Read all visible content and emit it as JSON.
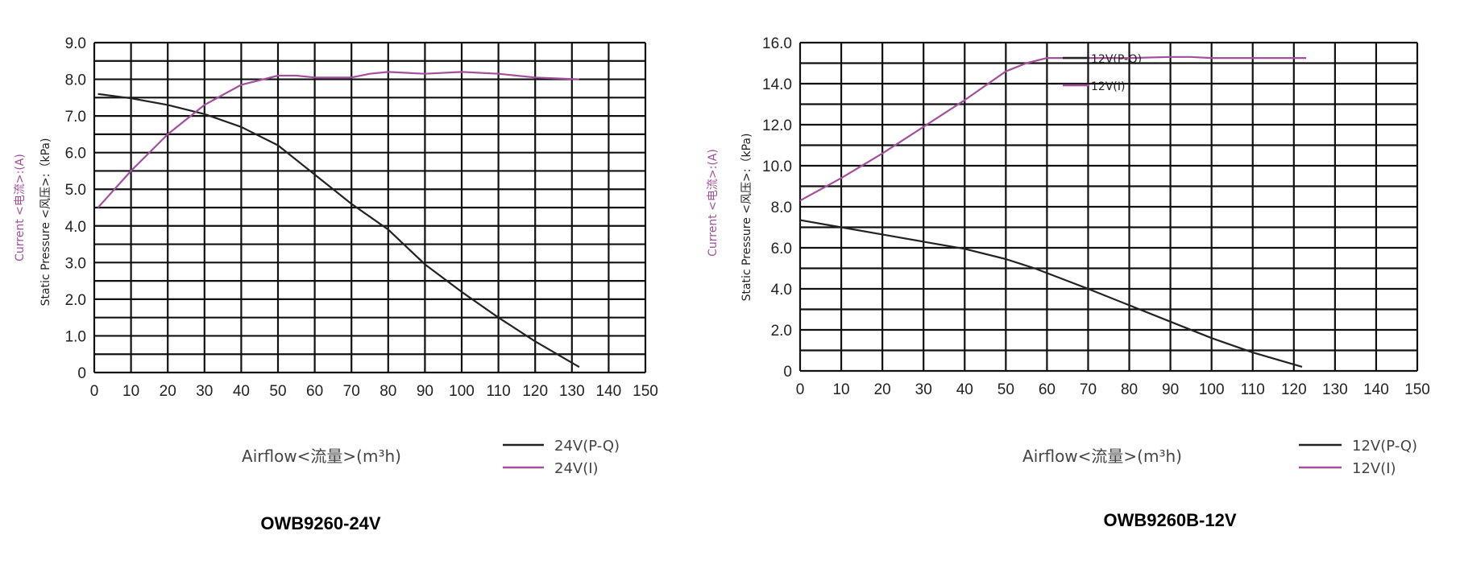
{
  "colors": {
    "pq": "#222222",
    "current": "#a24f9c",
    "grid": "#111111"
  },
  "chart_data": [
    {
      "type": "line",
      "title": "OWB9260-24V",
      "xlabel": "Airflow<流量>(m³h)",
      "ylabel_pressure": "Static  Pressure <风压>:（kPa)",
      "ylabel_current": "Current <电流>:(A)",
      "xlim": [
        0,
        150
      ],
      "ylim": [
        0,
        9
      ],
      "xticks": [
        "0",
        "10",
        "20",
        "30",
        "40",
        "50",
        "60",
        "70",
        "80",
        "90",
        "100",
        "110",
        "120",
        "130",
        "140",
        "150"
      ],
      "yticks": [
        "0",
        "1.0",
        "2.0",
        "3.0",
        "4.0",
        "5.0",
        "6.0",
        "7.0",
        "8.0",
        "9.0"
      ],
      "grid": true,
      "ygrid_step": 0.5,
      "legend": "bottom-right",
      "series": [
        {
          "name": "24V(P-Q)",
          "color_key": "pq",
          "x": [
            1,
            10,
            20,
            30,
            40,
            50,
            60,
            70,
            80,
            90,
            100,
            110,
            120,
            132
          ],
          "y": [
            7.6,
            7.48,
            7.3,
            7.05,
            6.7,
            6.2,
            5.4,
            4.6,
            3.9,
            2.95,
            2.2,
            1.5,
            0.85,
            0.15
          ]
        },
        {
          "name": "24V(I)",
          "color_key": "current",
          "x": [
            1,
            10,
            20,
            30,
            40,
            50,
            55,
            60,
            70,
            75,
            80,
            90,
            100,
            110,
            120,
            132
          ],
          "y": [
            4.5,
            5.5,
            6.5,
            7.3,
            7.85,
            8.1,
            8.1,
            8.05,
            8.05,
            8.15,
            8.2,
            8.15,
            8.2,
            8.15,
            8.05,
            8.0
          ]
        }
      ]
    },
    {
      "type": "line",
      "title": "OWB9260B-12V",
      "xlabel": "Airflow<流量>(m³h)",
      "ylabel_pressure": "Static  Pressure <风压>:（kPa)",
      "ylabel_current": "Current <电流>:(A)",
      "xlim": [
        0,
        150
      ],
      "ylim": [
        0,
        16
      ],
      "xticks": [
        "0",
        "10",
        "20",
        "30",
        "40",
        "50",
        "60",
        "70",
        "80",
        "90",
        "100",
        "110",
        "120",
        "130",
        "140",
        "150"
      ],
      "yticks": [
        "0",
        "2.0",
        "4.0",
        "6.0",
        "8.0",
        "10.0",
        "12.0",
        "14.0",
        "16.0"
      ],
      "grid": true,
      "ygrid_step": 1,
      "legend": "bottom-right",
      "inner_legend": [
        "12V(P-Q)",
        "12V(I)"
      ],
      "series": [
        {
          "name": "12V(P-Q)",
          "color_key": "pq",
          "x": [
            0,
            10,
            20,
            30,
            40,
            50,
            57,
            70,
            80,
            90,
            100,
            110,
            122
          ],
          "y": [
            7.35,
            7.0,
            6.65,
            6.3,
            5.95,
            5.45,
            5.0,
            4.0,
            3.2,
            2.4,
            1.6,
            0.9,
            0.2
          ]
        },
        {
          "name": "12V(I)",
          "color_key": "current",
          "x": [
            0,
            10,
            20,
            30,
            40,
            50,
            55,
            60,
            80,
            90,
            95,
            100,
            123
          ],
          "y": [
            8.3,
            9.4,
            10.6,
            11.9,
            13.2,
            14.6,
            15.0,
            15.25,
            15.25,
            15.3,
            15.3,
            15.25,
            15.25
          ]
        }
      ]
    }
  ]
}
